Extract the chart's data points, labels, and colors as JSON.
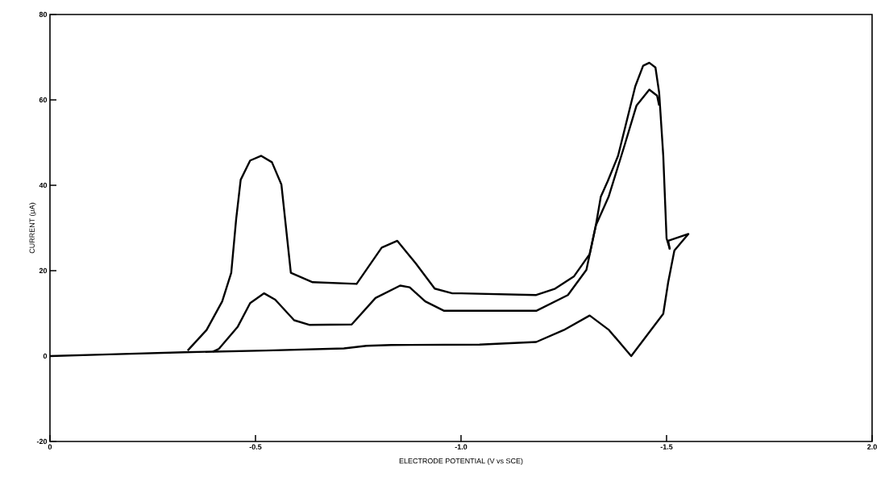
{
  "chart_data": {
    "type": "line",
    "xlabel": "ELECTRODE POTENTIAL (V vs SCE)",
    "ylabel": "CURRENT (μA)",
    "xlim": [
      0,
      -2.0
    ],
    "ylim": [
      -20,
      80
    ],
    "xticks": [
      {
        "value": 0,
        "label": "0"
      },
      {
        "value": -0.5,
        "label": "-0.5"
      },
      {
        "value": -1.0,
        "label": "-1.0"
      },
      {
        "value": -1.5,
        "label": "-1.5"
      },
      {
        "value": -2.0,
        "label": "2.0"
      }
    ],
    "yticks": [
      -20,
      0,
      20,
      40,
      60,
      80
    ],
    "grid": false,
    "series": [
      {
        "color": "#000000",
        "x": [
          0,
          -0.145,
          -0.327,
          -0.525,
          -0.715,
          -0.77,
          -0.83,
          -1.045,
          -1.183,
          -1.25,
          -1.313,
          -1.36,
          -1.414,
          -1.492,
          -1.504,
          -1.519,
          -1.553,
          -1.504,
          -1.508
        ],
        "values": [
          0,
          0.4,
          0.9,
          1.3,
          1.8,
          2.4,
          2.6,
          2.7,
          3.3,
          6.1,
          9.5,
          6.1,
          0,
          9.9,
          17.3,
          24.7,
          28.6,
          27.0,
          25.0
        ]
      },
      {
        "color": "#000000",
        "x": [
          -1.508,
          -1.5,
          -1.492,
          -1.482,
          -1.473,
          -1.458,
          -1.443,
          -1.424,
          -1.405,
          -1.382,
          -1.357,
          -1.34,
          -1.328,
          -1.313,
          -1.275,
          -1.229,
          -1.183,
          -1.0,
          -0.979,
          -0.936,
          -0.89,
          -0.845,
          -0.807,
          -0.746,
          -0.639,
          -0.586,
          -0.572,
          -0.563,
          -0.54,
          -0.514,
          -0.487,
          -0.464,
          -0.453,
          -0.441,
          -0.419,
          -0.381,
          -0.335
        ],
        "values": [
          25.0,
          27.6,
          46.9,
          61.7,
          67.6,
          68.7,
          68.0,
          63.2,
          55.8,
          46.9,
          41.0,
          37.3,
          30.6,
          23.9,
          18.7,
          15.8,
          14.3,
          14.7,
          14.7,
          15.8,
          21.7,
          27.0,
          25.4,
          16.9,
          17.3,
          19.5,
          32.1,
          40.2,
          45.4,
          46.9,
          45.8,
          41.3,
          32.1,
          19.5,
          12.8,
          6.1,
          1.3
        ]
      },
      {
        "color": "#000000",
        "x": [
          -0.396,
          -0.411,
          -0.457,
          -0.487,
          -0.521,
          -0.548,
          -0.594,
          -0.632,
          -0.734,
          -0.792,
          -0.852,
          -0.875,
          -0.913,
          -0.959,
          -1.0,
          -1.183,
          -1.26,
          -1.305,
          -1.328,
          -1.359,
          -1.397,
          -1.427,
          -1.458,
          -1.477,
          -1.482
        ],
        "values": [
          1.0,
          1.7,
          6.9,
          12.4,
          14.7,
          13.2,
          8.4,
          7.3,
          7.4,
          13.6,
          16.5,
          16.1,
          12.8,
          10.6,
          10.6,
          10.6,
          14.3,
          20.2,
          30.6,
          37.3,
          49.1,
          58.7,
          62.4,
          61.0,
          58.7
        ]
      }
    ]
  }
}
